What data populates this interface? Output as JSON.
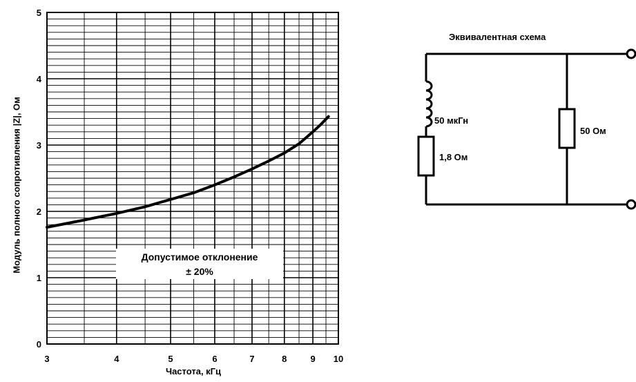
{
  "chart_data": {
    "type": "line",
    "xscale": "log",
    "xlim": [
      3,
      10
    ],
    "ylim": [
      0,
      5
    ],
    "x_ticks": [
      3,
      4,
      5,
      6,
      7,
      8,
      9,
      10
    ],
    "y_ticks": [
      0,
      1,
      2,
      3,
      4,
      5
    ],
    "grid": true,
    "xlabel": "Частота, кГц",
    "ylabel": "Модуль полного сопротивления |Z|, Ом",
    "annotation": [
      "Допустимое отклонение",
      "± 20%"
    ],
    "series": [
      {
        "x": [
          3.0,
          3.5,
          4.0,
          4.5,
          5.0,
          5.5,
          6.0,
          6.5,
          7.0,
          7.5,
          8.0,
          8.5,
          9.0,
          9.3,
          9.6
        ],
        "y": [
          1.76,
          1.87,
          1.97,
          2.07,
          2.18,
          2.28,
          2.4,
          2.52,
          2.64,
          2.76,
          2.88,
          3.02,
          3.2,
          3.31,
          3.43
        ]
      }
    ]
  },
  "schematic": {
    "title": "Эквивалентная схема",
    "inductor_label": "50 мкГн",
    "series_resistor_label": "1,8 Ом",
    "parallel_resistor_label": "50 Ом"
  }
}
